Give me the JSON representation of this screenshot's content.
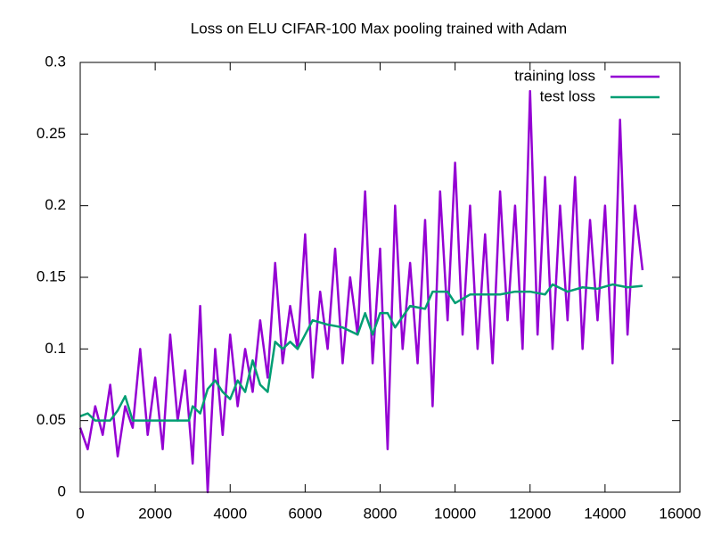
{
  "chart_data": {
    "type": "line",
    "title": "Loss on ELU CIFAR-100 Max pooling trained with Adam",
    "xlim": [
      0,
      16000
    ],
    "xticks": [
      0,
      2000,
      4000,
      6000,
      8000,
      10000,
      12000,
      14000,
      16000
    ],
    "ylim": [
      0,
      0.3
    ],
    "yticks": [
      0,
      0.05,
      0.1,
      0.15,
      0.2,
      0.25,
      0.3
    ],
    "legend": "upper-right",
    "series": [
      {
        "name": "training loss",
        "color": "#9400d3",
        "x": [
          0,
          200,
          400,
          600,
          800,
          1000,
          1200,
          1400,
          1600,
          1800,
          2000,
          2200,
          2400,
          2600,
          2800,
          3000,
          3200,
          3400,
          3600,
          3800,
          4000,
          4200,
          4400,
          4600,
          4800,
          5000,
          5200,
          5400,
          5600,
          5800,
          6000,
          6200,
          6400,
          6600,
          6800,
          7000,
          7200,
          7400,
          7600,
          7800,
          8000,
          8200,
          8400,
          8600,
          8800,
          9000,
          9200,
          9400,
          9600,
          9800,
          10000,
          10200,
          10400,
          10600,
          10800,
          11000,
          11200,
          11400,
          11600,
          11800,
          12000,
          12200,
          12400,
          12600,
          12800,
          13000,
          13200,
          13400,
          13600,
          13800,
          14000,
          14200,
          14400,
          14600,
          14800,
          15000
        ],
        "values": [
          0.045,
          0.03,
          0.06,
          0.04,
          0.075,
          0.025,
          0.06,
          0.045,
          0.1,
          0.04,
          0.08,
          0.03,
          0.11,
          0.05,
          0.085,
          0.02,
          0.13,
          0.0,
          0.1,
          0.04,
          0.11,
          0.06,
          0.1,
          0.07,
          0.12,
          0.08,
          0.16,
          0.09,
          0.13,
          0.1,
          0.18,
          0.08,
          0.14,
          0.1,
          0.17,
          0.09,
          0.15,
          0.11,
          0.21,
          0.09,
          0.17,
          0.03,
          0.2,
          0.1,
          0.16,
          0.09,
          0.19,
          0.06,
          0.21,
          0.12,
          0.23,
          0.11,
          0.2,
          0.1,
          0.18,
          0.09,
          0.21,
          0.12,
          0.2,
          0.1,
          0.28,
          0.11,
          0.22,
          0.1,
          0.2,
          0.12,
          0.22,
          0.1,
          0.19,
          0.12,
          0.2,
          0.09,
          0.26,
          0.11,
          0.2,
          0.155
        ]
      },
      {
        "name": "test loss",
        "color": "#009e73",
        "x": [
          0,
          200,
          400,
          800,
          1000,
          1200,
          1400,
          2000,
          2900,
          3000,
          3200,
          3400,
          3600,
          3800,
          4000,
          4200,
          4400,
          4600,
          4800,
          5000,
          5200,
          5400,
          5600,
          5800,
          6000,
          6200,
          6600,
          7000,
          7400,
          7600,
          7800,
          8000,
          8200,
          8400,
          8800,
          9200,
          9400,
          9800,
          10000,
          10400,
          10800,
          11200,
          11600,
          12000,
          12400,
          12600,
          13000,
          13400,
          13800,
          14200,
          14600,
          15000
        ],
        "values": [
          0.053,
          0.055,
          0.05,
          0.05,
          0.057,
          0.067,
          0.05,
          0.05,
          0.05,
          0.06,
          0.055,
          0.072,
          0.078,
          0.07,
          0.065,
          0.078,
          0.07,
          0.092,
          0.075,
          0.07,
          0.105,
          0.1,
          0.105,
          0.1,
          0.11,
          0.12,
          0.117,
          0.115,
          0.11,
          0.125,
          0.11,
          0.125,
          0.125,
          0.115,
          0.13,
          0.128,
          0.14,
          0.14,
          0.132,
          0.138,
          0.138,
          0.138,
          0.14,
          0.14,
          0.138,
          0.145,
          0.14,
          0.143,
          0.142,
          0.145,
          0.143,
          0.144
        ]
      }
    ]
  }
}
